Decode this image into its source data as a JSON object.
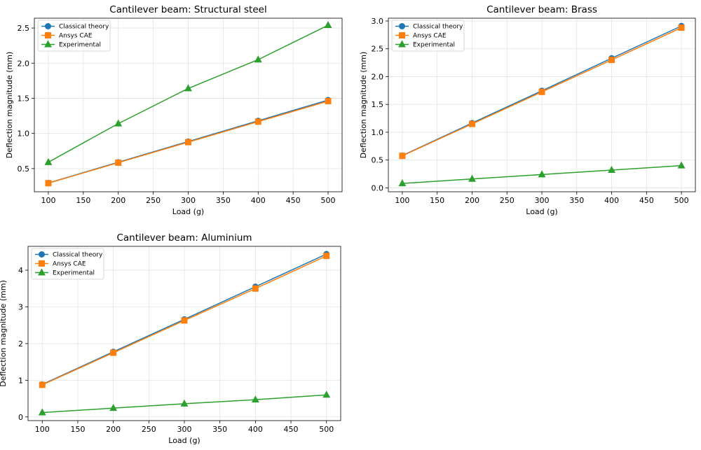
{
  "chart_data": [
    {
      "type": "line",
      "title": "Cantilever beam: Structural steel",
      "xlabel": "Load (g)",
      "ylabel": "Deflection magnitude (mm)",
      "x": [
        100,
        200,
        300,
        400,
        500
      ],
      "xlim": [
        80,
        520
      ],
      "ylim": [
        0.17,
        2.64
      ],
      "xticks": [
        100,
        150,
        200,
        250,
        300,
        350,
        400,
        450,
        500
      ],
      "yticks": [
        0.5,
        1.0,
        1.5,
        2.0,
        2.5
      ],
      "ytick_labels": [
        "0.5",
        "1.0",
        "1.5",
        "2.0",
        "2.5"
      ],
      "grid": true,
      "legend_position": "top-left",
      "series": [
        {
          "name": "Classical theory",
          "values": [
            0.295,
            0.59,
            0.885,
            1.18,
            1.475
          ],
          "color": "#1f77b4",
          "marker": "circle"
        },
        {
          "name": "Ansys CAE",
          "values": [
            0.292,
            0.584,
            0.876,
            1.168,
            1.46
          ],
          "color": "#ff7f0e",
          "marker": "square"
        },
        {
          "name": "Experimental",
          "values": [
            0.59,
            1.14,
            1.64,
            2.05,
            2.54
          ],
          "color": "#2ca02c",
          "marker": "triangle"
        }
      ]
    },
    {
      "type": "line",
      "title": "Cantilever beam: Brass",
      "xlabel": "Load (g)",
      "ylabel": "Deflection magnitude (mm)",
      "x": [
        100,
        200,
        300,
        400,
        500
      ],
      "xlim": [
        80,
        520
      ],
      "ylim": [
        -0.07,
        3.05
      ],
      "xticks": [
        100,
        150,
        200,
        250,
        300,
        350,
        400,
        450,
        500
      ],
      "yticks": [
        0.0,
        0.5,
        1.0,
        1.5,
        2.0,
        2.5,
        3.0
      ],
      "ytick_labels": [
        "0.0",
        "0.5",
        "1.0",
        "1.5",
        "2.0",
        "2.5",
        "3.0"
      ],
      "grid": true,
      "legend_position": "top-left",
      "series": [
        {
          "name": "Classical theory",
          "values": [
            0.58,
            1.165,
            1.745,
            2.33,
            2.91
          ],
          "color": "#1f77b4",
          "marker": "circle"
        },
        {
          "name": "Ansys CAE",
          "values": [
            0.575,
            1.15,
            1.725,
            2.3,
            2.88
          ],
          "color": "#ff7f0e",
          "marker": "square"
        },
        {
          "name": "Experimental",
          "values": [
            0.08,
            0.16,
            0.24,
            0.32,
            0.4
          ],
          "color": "#2ca02c",
          "marker": "triangle"
        }
      ]
    },
    {
      "type": "line",
      "title": "Cantilever beam: Aluminium",
      "xlabel": "Load (g)",
      "ylabel": "Deflection magnitude (mm)",
      "x": [
        100,
        200,
        300,
        400,
        500
      ],
      "xlim": [
        80,
        520
      ],
      "ylim": [
        -0.1,
        4.65
      ],
      "xticks": [
        100,
        150,
        200,
        250,
        300,
        350,
        400,
        450,
        500
      ],
      "yticks": [
        0,
        1,
        2,
        3,
        4
      ],
      "ytick_labels": [
        "0",
        "1",
        "2",
        "3",
        "4"
      ],
      "grid": true,
      "legend_position": "top-left",
      "series": [
        {
          "name": "Classical theory",
          "values": [
            0.885,
            1.775,
            2.66,
            3.55,
            4.44
          ],
          "color": "#1f77b4",
          "marker": "circle"
        },
        {
          "name": "Ansys CAE",
          "values": [
            0.875,
            1.75,
            2.63,
            3.5,
            4.39
          ],
          "color": "#ff7f0e",
          "marker": "square"
        },
        {
          "name": "Experimental",
          "values": [
            0.12,
            0.24,
            0.36,
            0.47,
            0.6
          ],
          "color": "#2ca02c",
          "marker": "triangle"
        }
      ]
    }
  ]
}
